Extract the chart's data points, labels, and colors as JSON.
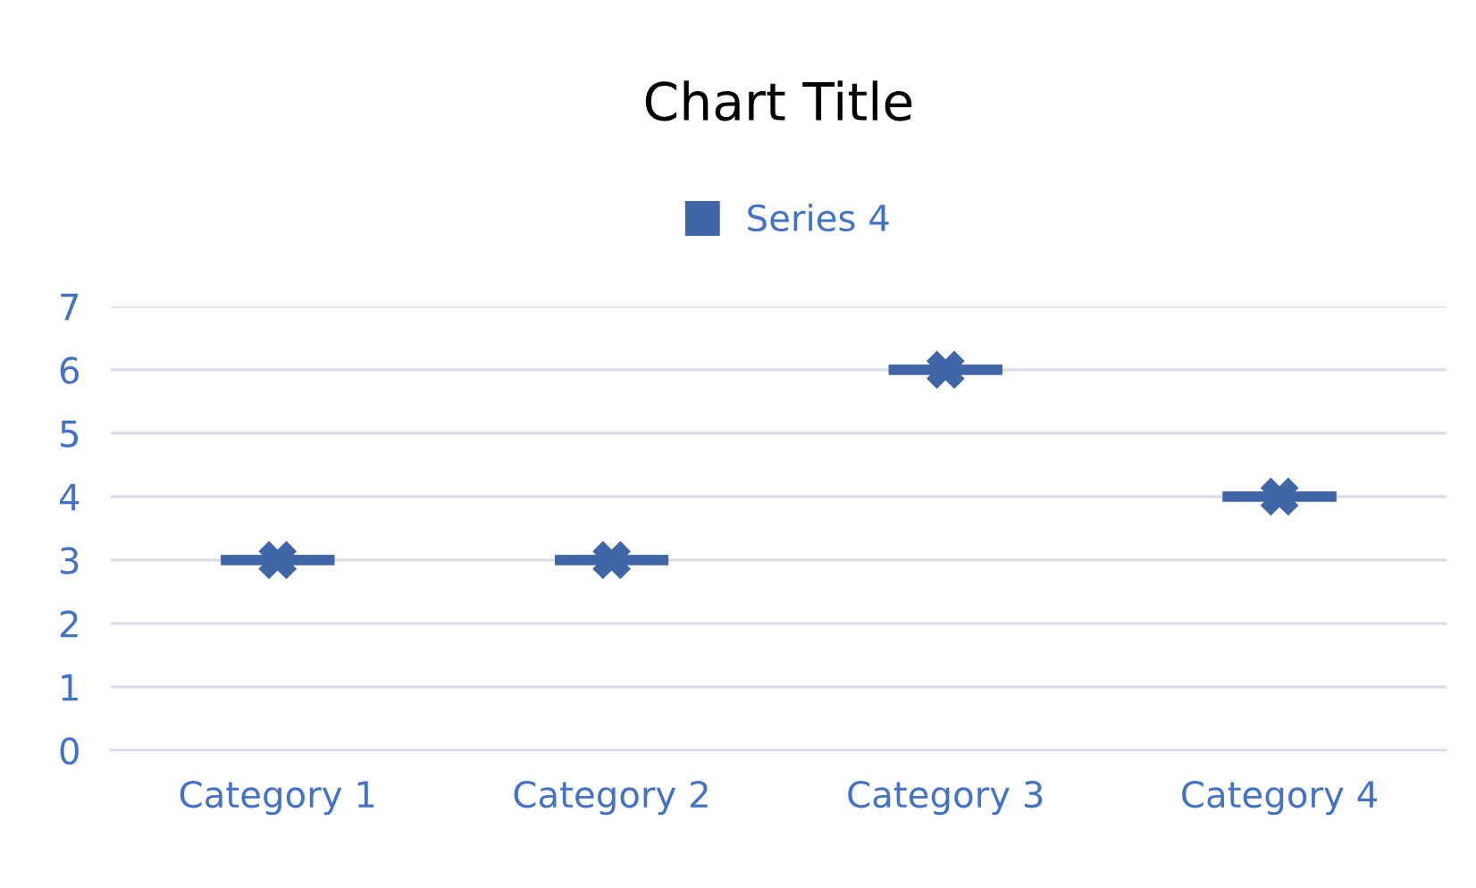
{
  "chart_data": {
    "type": "box",
    "title": "Chart Title",
    "categories": [
      "Category 1",
      "Category 2",
      "Category 3",
      "Category 4"
    ],
    "series": [
      {
        "name": "Series 4",
        "color": "#4166a8",
        "boxes": [
          {
            "low": 3,
            "q1": 3,
            "median": 3,
            "q3": 3,
            "high": 3,
            "mean": 3
          },
          {
            "low": 3,
            "q1": 3,
            "median": 3,
            "q3": 3,
            "high": 3,
            "mean": 3
          },
          {
            "low": 6,
            "q1": 6,
            "median": 6,
            "q3": 6,
            "high": 6,
            "mean": 6
          },
          {
            "low": 4,
            "q1": 4,
            "median": 4,
            "q3": 4,
            "high": 4,
            "mean": 4
          }
        ]
      }
    ],
    "marker": "cross",
    "ylim": [
      0,
      7
    ],
    "yticks": [
      0,
      1,
      2,
      3,
      4,
      5,
      6,
      7
    ],
    "grid": "y",
    "legend": "top"
  }
}
